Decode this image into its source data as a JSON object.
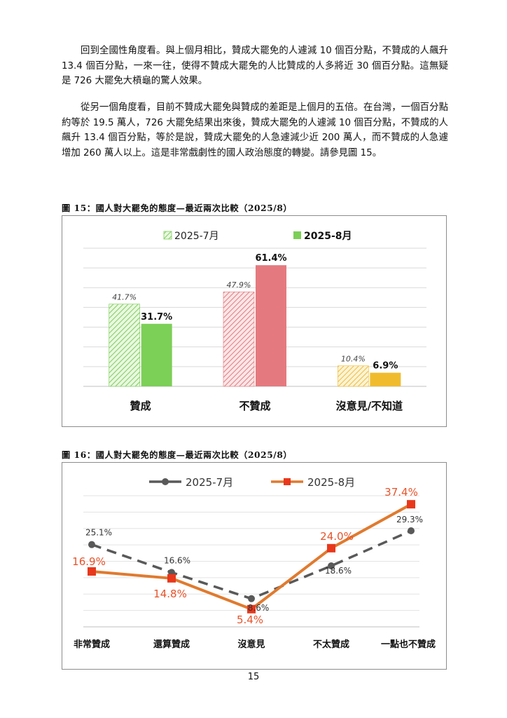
{
  "paragraphs": [
    "回到全國性角度看。與上個月相比，贊成大罷免的人遽減 10 個百分點，不贊成的人飆升 13.4 個百分點，一來一往，使得不贊成大罷免的人比贊成的人多將近 30 個百分點。這無疑是 726 大罷免大槓龜的驚人效果。",
    "從另一個角度看，目前不贊成大罷免與贊成的差距是上個月的五倍。在台灣，一個百分點約等於 19.5 萬人，726 大罷免結果出來後，贊成大罷免的人遽減 10 個百分點，不贊成的人飆升 13.4 個百分點，等於是說，贊成大罷免的人急遽減少近 200 萬人，而不贊成的人急遽增加 260 萬人以上。這是非常戲劇性的國人政治態度的轉變。請參見圖 15。"
  ],
  "figure15": {
    "caption": "圖 15：國人對大罷免的態度—最近兩次比較（2025/8）",
    "chart_data": {
      "type": "bar",
      "categories": [
        "贊成",
        "不贊成",
        "沒意見/不知道"
      ],
      "series": [
        {
          "name": "2025-7月",
          "values": [
            41.7,
            47.9,
            10.4
          ],
          "labels": [
            "41.7%",
            "47.9%",
            "10.4%"
          ]
        },
        {
          "name": "2025-8月",
          "values": [
            31.7,
            61.4,
            6.9
          ],
          "labels": [
            "31.7%",
            "61.4%",
            "6.9%"
          ]
        }
      ],
      "ylim": [
        0,
        70
      ],
      "grid": true,
      "legend": "top",
      "colors": {
        "jul": [
          "#9fd88a",
          "#f0a7aa",
          "#f2d27a"
        ],
        "aug": [
          "#7ccf57",
          "#e47a7f",
          "#f0bc2e"
        ]
      }
    }
  },
  "figure16": {
    "caption": "圖 16：國人對大罷免的態度—最近兩次比較（2025/8）",
    "chart_data": {
      "type": "line",
      "categories": [
        "非常贊成",
        "還算贊成",
        "沒意見",
        "不太贊成",
        "一點也不贊成"
      ],
      "series": [
        {
          "name": "2025-7月",
          "values": [
            25.1,
            16.6,
            8.6,
            18.6,
            29.3
          ],
          "labels": [
            "25.1%",
            "16.6%",
            "8.6%",
            "18.6%",
            "29.3%"
          ],
          "color": "#595959",
          "style": "dashed"
        },
        {
          "name": "2025-8月",
          "values": [
            16.9,
            14.8,
            5.4,
            24.0,
            37.4
          ],
          "labels": [
            "16.9%",
            "14.8%",
            "5.4%",
            "24.0%",
            "37.4%"
          ],
          "color": "#e07a2e",
          "style": "solid"
        }
      ],
      "ylim": [
        0,
        40
      ],
      "grid": true,
      "legend": "top",
      "label_color_aug": "#e8532a"
    }
  },
  "page_number": "15"
}
